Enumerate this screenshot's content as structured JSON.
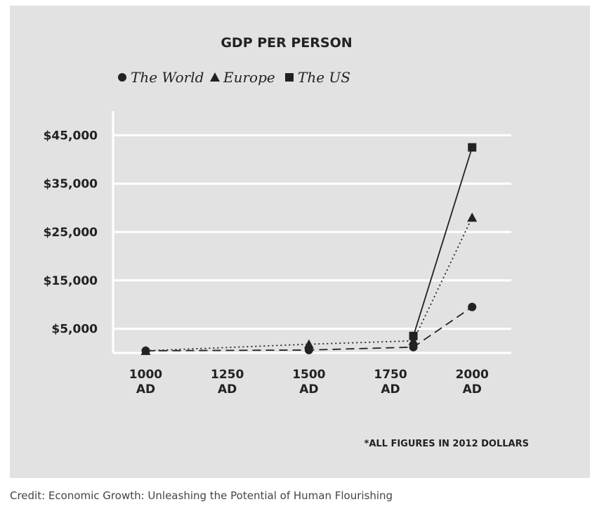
{
  "chart_data": {
    "type": "line",
    "title": "GDP PER PERSON",
    "xlabel": "",
    "ylabel": "",
    "x_ticks": [
      {
        "value": 1000,
        "line1": "1000",
        "line2": "AD"
      },
      {
        "value": 1250,
        "line1": "1250",
        "line2": "AD"
      },
      {
        "value": 1500,
        "line1": "1500",
        "line2": "AD"
      },
      {
        "value": 1750,
        "line1": "1750",
        "line2": "AD"
      },
      {
        "value": 2000,
        "line1": "2000",
        "line2": "AD"
      }
    ],
    "y_ticks": [
      {
        "value": 5000,
        "label": "$5,000"
      },
      {
        "value": 15000,
        "label": "$15,000"
      },
      {
        "value": 25000,
        "label": "$25,000"
      },
      {
        "value": 35000,
        "label": "$35,000"
      },
      {
        "value": 45000,
        "label": "$45,000"
      }
    ],
    "xlim": [
      900,
      2120
    ],
    "ylim": [
      0,
      50000
    ],
    "grid": true,
    "legend_position": "top",
    "series": [
      {
        "name": "The World",
        "marker": "circle",
        "line_style": "dashed",
        "color": "#222222",
        "points": [
          [
            1000,
            450
          ],
          [
            1500,
            600
          ],
          [
            1820,
            1200
          ],
          [
            2000,
            9500
          ]
        ]
      },
      {
        "name": "Europe",
        "marker": "triangle",
        "line_style": "dotted",
        "color": "#222222",
        "points": [
          [
            1000,
            450
          ],
          [
            1500,
            1800
          ],
          [
            1820,
            2500
          ],
          [
            2000,
            28000
          ]
        ]
      },
      {
        "name": "The US",
        "marker": "square",
        "line_style": "solid",
        "color": "#222222",
        "points": [
          [
            1820,
            3500
          ],
          [
            2000,
            42500
          ]
        ]
      }
    ],
    "note": "*ALL FIGURES IN 2012 DOLLARS"
  },
  "credit": "Credit: Economic Growth: Unleashing the Potential of Human Flourishing"
}
